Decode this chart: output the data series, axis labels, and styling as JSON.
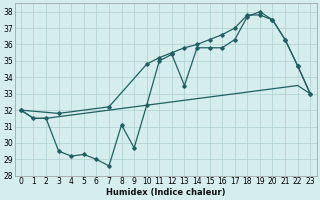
{
  "xlabel": "Humidex (Indice chaleur)",
  "xlim": [
    -0.5,
    23.5
  ],
  "ylim": [
    28,
    38.5
  ],
  "yticks": [
    28,
    29,
    30,
    31,
    32,
    33,
    34,
    35,
    36,
    37,
    38
  ],
  "xticks": [
    0,
    1,
    2,
    3,
    4,
    5,
    6,
    7,
    8,
    9,
    10,
    11,
    12,
    13,
    14,
    15,
    16,
    17,
    18,
    19,
    20,
    21,
    22,
    23
  ],
  "bg_color": "#d6eded",
  "grid_color": "#afd0d0",
  "line_color": "#206060",
  "lines": [
    {
      "x": [
        0,
        1,
        2,
        3,
        4,
        5,
        6,
        7,
        8,
        9,
        10,
        11,
        12,
        13,
        14,
        15,
        16,
        17,
        18,
        19,
        20,
        21,
        22,
        23
      ],
      "y": [
        32.0,
        31.5,
        31.5,
        29.5,
        29.2,
        29.3,
        29.0,
        28.6,
        31.1,
        29.7,
        32.3,
        35.0,
        35.4,
        33.5,
        35.8,
        35.8,
        35.8,
        36.3,
        37.7,
        38.0,
        37.5,
        36.3,
        34.7,
        33.0
      ]
    },
    {
      "x": [
        0,
        3,
        7,
        10,
        11,
        12,
        13,
        14,
        15,
        16,
        17,
        18,
        19,
        20,
        21,
        22,
        23
      ],
      "y": [
        32.0,
        31.8,
        32.2,
        34.8,
        35.2,
        35.5,
        35.8,
        36.0,
        36.3,
        36.6,
        37.0,
        37.8,
        37.8,
        37.5,
        36.3,
        34.7,
        33.0
      ]
    },
    {
      "x": [
        0,
        1,
        2,
        3,
        4,
        5,
        6,
        7,
        8,
        9,
        10,
        11,
        12,
        13,
        14,
        15,
        16,
        17,
        18,
        19,
        20,
        21,
        22,
        23
      ],
      "y": [
        32.0,
        31.5,
        31.5,
        31.6,
        31.7,
        31.8,
        31.9,
        32.0,
        32.1,
        32.2,
        32.3,
        32.4,
        32.5,
        32.6,
        32.7,
        32.8,
        32.9,
        33.0,
        33.1,
        33.2,
        33.3,
        33.4,
        33.5,
        33.0
      ]
    }
  ]
}
